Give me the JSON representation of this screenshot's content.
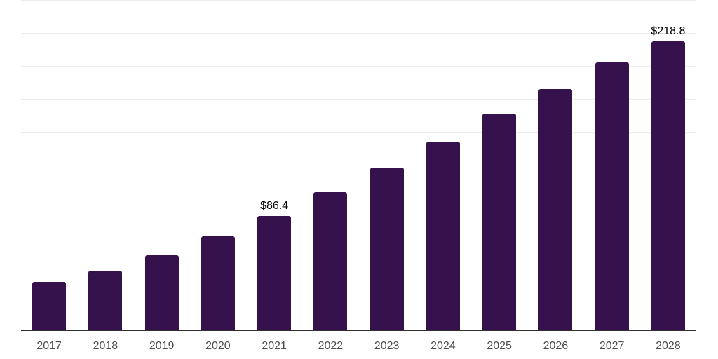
{
  "chart_data": {
    "type": "bar",
    "categories": [
      "2017",
      "2018",
      "2019",
      "2020",
      "2021",
      "2022",
      "2023",
      "2024",
      "2025",
      "2026",
      "2027",
      "2028"
    ],
    "values": [
      36.4,
      44.5,
      56.2,
      70.5,
      86.4,
      104.4,
      123.0,
      142.8,
      163.8,
      182.2,
      202.6,
      218.8
    ],
    "data_labels": [
      "",
      "",
      "",
      "",
      "$86.4",
      "",
      "",
      "",
      "",
      "",
      "",
      "$218.8"
    ],
    "title": "",
    "xlabel": "",
    "ylabel": "",
    "ylim": [
      0,
      250
    ],
    "gridline_interval": 25,
    "grid": true,
    "legend": "none"
  },
  "colors": {
    "bar": "#35124B",
    "gridline": "#ededed",
    "axis": "#2e2e2e",
    "year_label": "#4d4d4d",
    "value_label": "#000000",
    "background": "#ffffff"
  }
}
